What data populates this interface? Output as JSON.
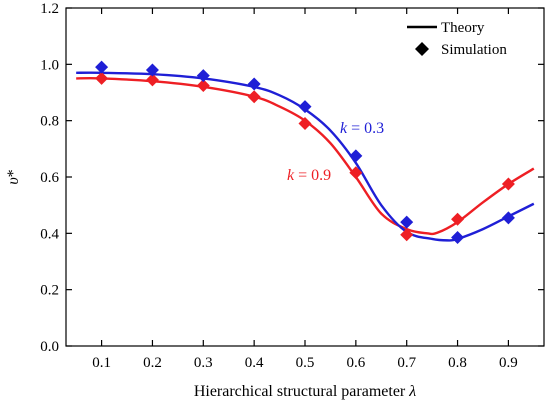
{
  "chart_data": {
    "type": "line",
    "xlabel_text": "Hierarchical structural parameter ",
    "xlabel_symbol": "λ",
    "ylabel_symbol": "υ",
    "ylabel_sup": "*",
    "xlim": [
      0.03,
      0.97
    ],
    "ylim": [
      0.0,
      1.2
    ],
    "x_ticks": [
      0.1,
      0.2,
      0.3,
      0.4,
      0.5,
      0.6,
      0.7,
      0.8,
      0.9
    ],
    "x_tick_labels": [
      "0.1",
      "0.2",
      "0.3",
      "0.4",
      "0.5",
      "0.6",
      "0.7",
      "0.8",
      "0.9"
    ],
    "y_ticks": [
      0.0,
      0.2,
      0.4,
      0.6,
      0.8,
      1.0,
      1.2
    ],
    "y_tick_labels": [
      "0.0",
      "0.2",
      "0.4",
      "0.6",
      "0.8",
      "1.0",
      "1.2"
    ],
    "legend": {
      "placement": "top-right",
      "theory_label": "Theory",
      "simulation_label": "Simulation"
    },
    "series": [
      {
        "name": "k = 0.3",
        "color": "#1f1fd6",
        "annotation": {
          "var": "k",
          "rest": " = 0.3"
        },
        "simulation": {
          "x": [
            0.1,
            0.2,
            0.3,
            0.4,
            0.5,
            0.6,
            0.7,
            0.8,
            0.9
          ],
          "y": [
            0.99,
            0.98,
            0.96,
            0.93,
            0.85,
            0.675,
            0.44,
            0.385,
            0.455
          ]
        },
        "theory": {
          "x": [
            0.05,
            0.1,
            0.2,
            0.3,
            0.4,
            0.45,
            0.5,
            0.55,
            0.6,
            0.65,
            0.7,
            0.75,
            0.78,
            0.8,
            0.85,
            0.9,
            0.95
          ],
          "y": [
            0.97,
            0.97,
            0.965,
            0.95,
            0.92,
            0.89,
            0.84,
            0.765,
            0.65,
            0.5,
            0.405,
            0.38,
            0.375,
            0.38,
            0.415,
            0.46,
            0.505
          ]
        }
      },
      {
        "name": "k = 0.9",
        "color": "#ee1f24",
        "annotation": {
          "var": "k",
          "rest": " = 0.9"
        },
        "simulation": {
          "x": [
            0.1,
            0.2,
            0.3,
            0.4,
            0.5,
            0.6,
            0.7,
            0.8,
            0.9
          ],
          "y": [
            0.95,
            0.945,
            0.925,
            0.885,
            0.79,
            0.615,
            0.395,
            0.45,
            0.575
          ]
        },
        "theory": {
          "x": [
            0.05,
            0.1,
            0.2,
            0.3,
            0.4,
            0.45,
            0.5,
            0.55,
            0.6,
            0.65,
            0.7,
            0.74,
            0.76,
            0.8,
            0.85,
            0.9,
            0.95
          ],
          "y": [
            0.95,
            0.95,
            0.94,
            0.92,
            0.885,
            0.85,
            0.8,
            0.72,
            0.6,
            0.47,
            0.415,
            0.4,
            0.402,
            0.44,
            0.51,
            0.575,
            0.63
          ]
        }
      }
    ]
  }
}
